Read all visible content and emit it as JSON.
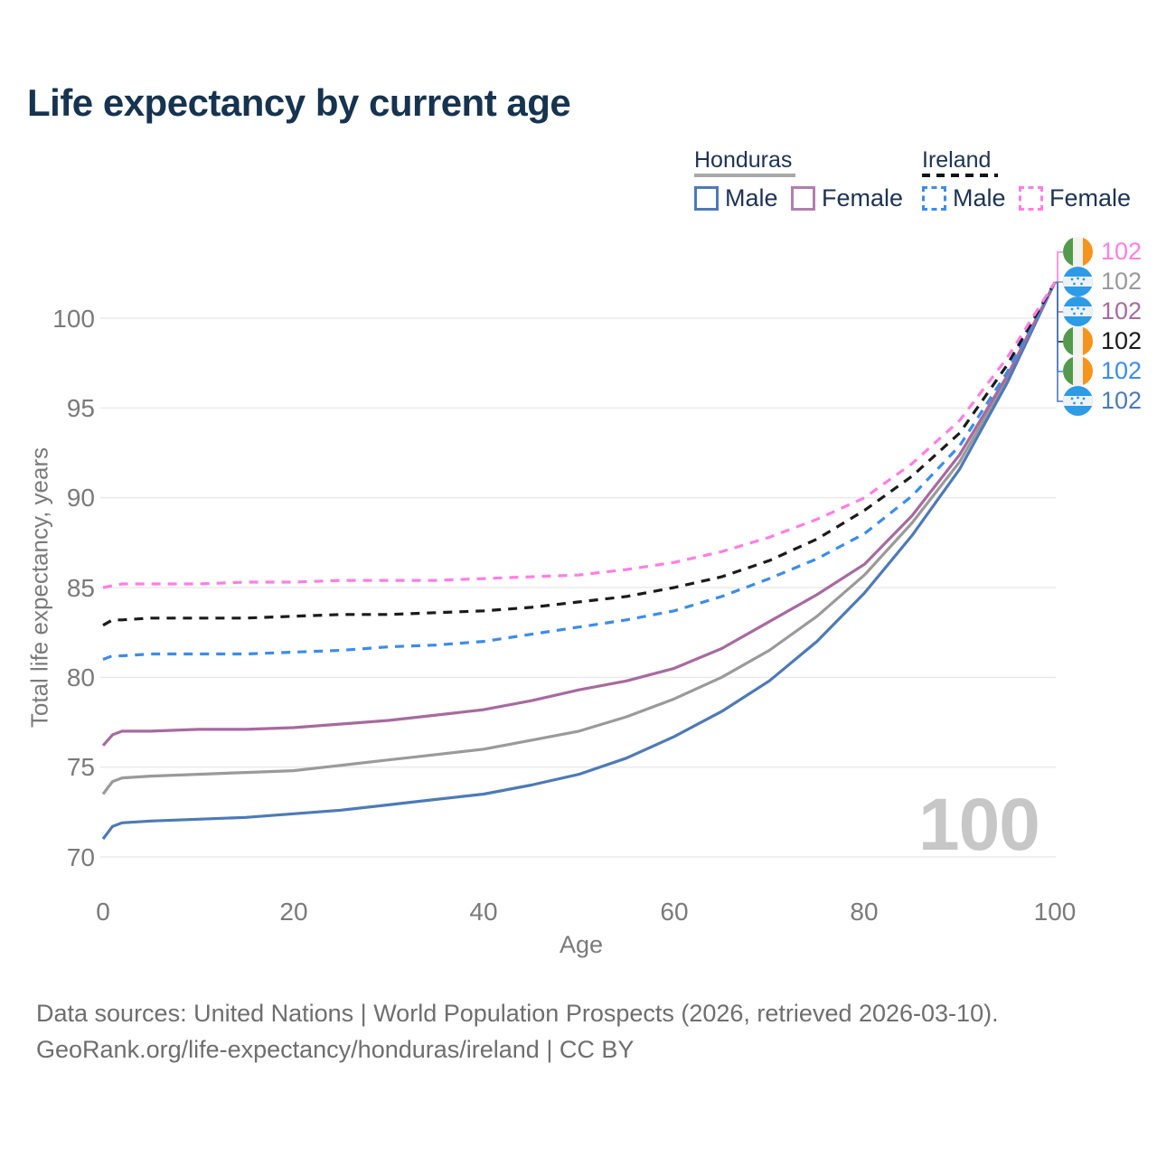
{
  "title": "Life expectancy by current age",
  "legend": {
    "groups": [
      {
        "country": "Honduras",
        "line_style": "solid",
        "underline_color": "#a9a9a9",
        "items": [
          {
            "label": "Male",
            "color": "#4d7ab7"
          },
          {
            "label": "Female",
            "color": "#b27fae"
          }
        ]
      },
      {
        "country": "Ireland",
        "line_style": "dashed",
        "underline_color": "#141414",
        "items": [
          {
            "label": "Male",
            "color": "#3c8cea"
          },
          {
            "label": "Female",
            "color": "#ff7ee4"
          }
        ]
      }
    ]
  },
  "chart_data": {
    "type": "line",
    "title": "Life expectancy by current age",
    "xlabel": "Age",
    "ylabel": "Total life expectancy, years",
    "xlim": [
      0,
      100
    ],
    "ylim": [
      70,
      102
    ],
    "x_ticks": [
      0,
      20,
      40,
      60,
      80,
      100
    ],
    "y_ticks": [
      70,
      75,
      80,
      85,
      90,
      95,
      100
    ],
    "grid": "horizontal",
    "x": [
      0,
      1,
      2,
      5,
      10,
      15,
      20,
      25,
      30,
      35,
      40,
      45,
      50,
      55,
      60,
      65,
      70,
      75,
      80,
      85,
      90,
      95,
      100
    ],
    "series": [
      {
        "name": "Honduras (both sexes)",
        "country": "Honduras",
        "sex": "both",
        "color": "#9a9a9a",
        "dashed": false,
        "values": [
          73.5,
          74.2,
          74.4,
          74.5,
          74.6,
          74.7,
          74.8,
          75.1,
          75.4,
          75.7,
          76.0,
          76.5,
          77.0,
          77.8,
          78.8,
          80.0,
          81.5,
          83.4,
          85.7,
          88.6,
          92.0,
          96.6,
          102
        ]
      },
      {
        "name": "Honduras Male",
        "country": "Honduras",
        "sex": "male",
        "color": "#4d7ab7",
        "dashed": false,
        "values": [
          71.0,
          71.7,
          71.9,
          72.0,
          72.1,
          72.2,
          72.4,
          72.6,
          72.9,
          73.2,
          73.5,
          74.0,
          74.6,
          75.5,
          76.7,
          78.1,
          79.8,
          82.0,
          84.7,
          87.9,
          91.6,
          96.4,
          102
        ]
      },
      {
        "name": "Honduras Female",
        "country": "Honduras",
        "sex": "female",
        "color": "#a76a9f",
        "dashed": false,
        "values": [
          76.2,
          76.8,
          77.0,
          77.0,
          77.1,
          77.1,
          77.2,
          77.4,
          77.6,
          77.9,
          78.2,
          78.7,
          79.3,
          79.8,
          80.5,
          81.6,
          83.1,
          84.6,
          86.3,
          89.0,
          92.4,
          96.8,
          102
        ]
      },
      {
        "name": "Ireland Male",
        "country": "Ireland",
        "sex": "male",
        "color": "#3c8cea",
        "dashed": true,
        "values": [
          81.0,
          81.2,
          81.2,
          81.3,
          81.3,
          81.3,
          81.4,
          81.5,
          81.7,
          81.8,
          82.0,
          82.4,
          82.8,
          83.2,
          83.7,
          84.5,
          85.5,
          86.6,
          88.0,
          90.1,
          92.9,
          97.0,
          102
        ]
      },
      {
        "name": "Ireland (both sexes)",
        "country": "Ireland",
        "sex": "both",
        "color": "#1b1b1b",
        "dashed": true,
        "values": [
          82.9,
          83.2,
          83.2,
          83.3,
          83.3,
          83.3,
          83.4,
          83.5,
          83.5,
          83.6,
          83.7,
          83.9,
          84.2,
          84.5,
          85.0,
          85.6,
          86.5,
          87.7,
          89.3,
          91.2,
          93.6,
          97.4,
          102
        ]
      },
      {
        "name": "Ireland Female",
        "country": "Ireland",
        "sex": "female",
        "color": "#ff7ee4",
        "dashed": true,
        "values": [
          85.0,
          85.1,
          85.2,
          85.2,
          85.2,
          85.3,
          85.3,
          85.4,
          85.4,
          85.4,
          85.5,
          85.6,
          85.7,
          86.0,
          86.4,
          87.0,
          87.8,
          88.8,
          90.0,
          91.9,
          94.3,
          97.8,
          102
        ]
      }
    ]
  },
  "end_labels": [
    {
      "flag": "ireland",
      "series": "Ireland Female",
      "value": "102",
      "color": "#ff7ee4"
    },
    {
      "flag": "honduras",
      "series": "Honduras (both sexes)",
      "value": "102",
      "color": "#9a9a9a"
    },
    {
      "flag": "honduras",
      "series": "Honduras Female",
      "value": "102",
      "color": "#a76a9f"
    },
    {
      "flag": "ireland",
      "series": "Ireland (both sexes)",
      "value": "102",
      "color": "#1b1b1b"
    },
    {
      "flag": "ireland",
      "series": "Ireland Male",
      "value": "102",
      "color": "#3c8cea"
    },
    {
      "flag": "honduras",
      "series": "Honduras Male",
      "value": "102",
      "color": "#4d7ab7"
    }
  ],
  "age_indicator": "100",
  "footer": {
    "line1": "Data sources: United Nations | World Population Prospects (2026, retrieved 2026-03-10).",
    "line2": "GeoRank.org/life-expectancy/honduras/ireland | CC BY"
  }
}
